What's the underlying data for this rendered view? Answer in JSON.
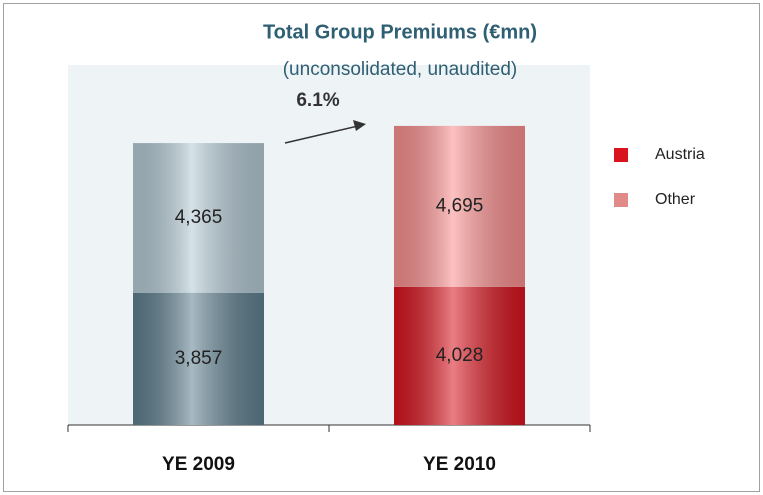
{
  "chart_data": {
    "type": "stacked_bar",
    "title": "Total Group Premiums (€mn)",
    "subtitle": "(unconsolidated, unaudited)",
    "annotation": "6.1%",
    "categories": [
      "YE 2009",
      "YE 2010"
    ],
    "series": [
      {
        "name": "Austria",
        "color": "#d9141e",
        "point_colors": [
          "#5f8090",
          "#d9141e"
        ],
        "values": [
          3857,
          4028
        ],
        "value_labels": [
          "3,857",
          "4,028"
        ]
      },
      {
        "name": "Other",
        "color": "#e08a8a",
        "point_colors": [
          "#b4cad5",
          "#fb8f8f"
        ],
        "values": [
          4365,
          4695
        ],
        "value_labels": [
          "4,365",
          "4,695"
        ]
      }
    ],
    "ylim": [
      0,
      10500
    ],
    "legend": "right"
  }
}
